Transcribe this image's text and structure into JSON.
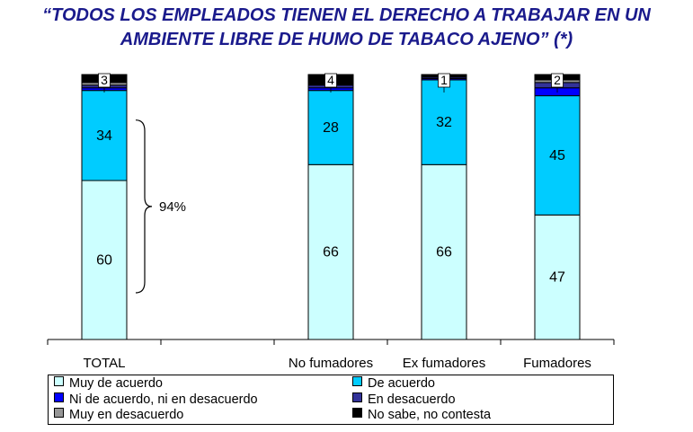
{
  "title": {
    "line1": "“TODOS LOS EMPLEADOS TIENEN EL DERECHO A TRABAJAR EN UN",
    "line2": "AMBIENTE LIBRE DE HUMO DE TABACO AJENO” (*)"
  },
  "chart_data": {
    "type": "bar",
    "stacked": true,
    "title": "“TODOS LOS EMPLEADOS TIENEN EL DERECHO A TRABAJAR EN UN AMBIENTE LIBRE DE HUMO DE TABACO AJENO” (*)",
    "categories": [
      "TOTAL",
      "",
      "No fumadores",
      "Ex fumadores",
      "Fumadores"
    ],
    "ylim": [
      0,
      100
    ],
    "grid": false,
    "legend_position": "bottom",
    "series": [
      {
        "name": "Muy de acuerdo",
        "color": "#ccffff",
        "values": [
          60,
          null,
          66,
          66,
          47
        ],
        "labels": [
          "60",
          "",
          "66",
          "66",
          "47"
        ]
      },
      {
        "name": "De acuerdo",
        "color": "#00ccff",
        "values": [
          34,
          null,
          28,
          32,
          45
        ],
        "labels": [
          "34",
          "",
          "28",
          "32",
          "45"
        ]
      },
      {
        "name": "Ni de acuerdo, ni en desacuerdo",
        "color": "#0000ff",
        "values": [
          1,
          null,
          1,
          0.5,
          3
        ],
        "labels": [
          "",
          "",
          "",
          "",
          ""
        ]
      },
      {
        "name": "En desacuerdo",
        "color": "#333399",
        "values": [
          1,
          null,
          1,
          0.5,
          2
        ],
        "labels": [
          "",
          "",
          "",
          "",
          ""
        ]
      },
      {
        "name": "Muy en desacuerdo",
        "color": "#969696",
        "values": [
          1,
          null,
          0,
          0,
          1
        ],
        "labels": [
          "",
          "",
          "",
          "",
          ""
        ]
      },
      {
        "name": "No sabe, no contesta",
        "color": "#000000",
        "values": [
          3,
          null,
          4,
          1,
          2
        ],
        "labels": [
          "3",
          "",
          "4",
          "1",
          "2"
        ]
      }
    ],
    "annotations": [
      {
        "text": "94%",
        "target": "TOTAL",
        "spans_series": [
          "Muy de acuerdo",
          "De acuerdo"
        ]
      }
    ]
  }
}
